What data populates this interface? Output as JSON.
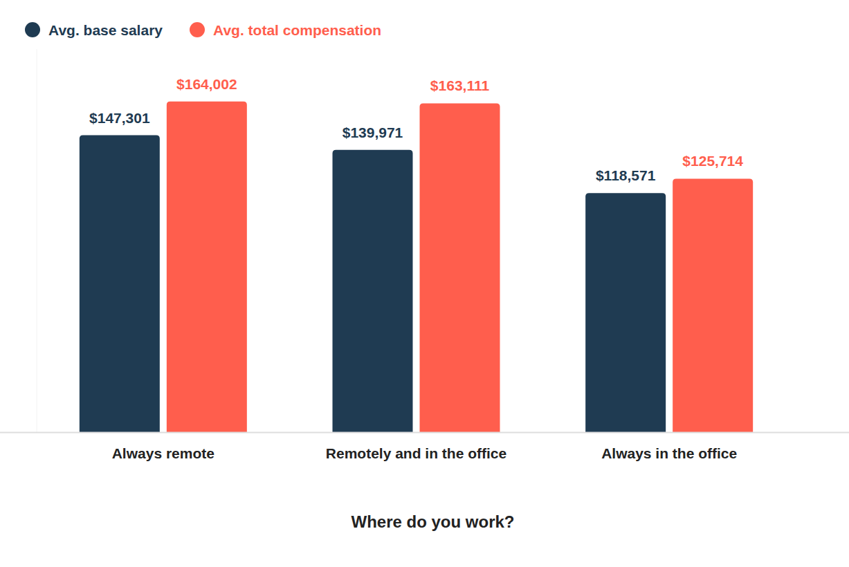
{
  "chart_data": {
    "type": "bar",
    "x_label": "Where do you work?",
    "categories": [
      "Always remote",
      "Remotely and in the office",
      "Always in the office"
    ],
    "series": [
      {
        "name": "Avg. base salary",
        "color": "#1f3b52",
        "values": [
          147301,
          139971,
          118571
        ],
        "value_labels": [
          "$147,301",
          "$139,971",
          "$118,571"
        ]
      },
      {
        "name": "Avg. total compensation",
        "color": "#ff5e4d",
        "values": [
          164002,
          163111,
          125714
        ],
        "value_labels": [
          "$164,002",
          "$163,111",
          "$125,714"
        ]
      }
    ],
    "ylim": [
      0,
      190000
    ],
    "grid": false,
    "legend": "top-left",
    "data_labels": true,
    "tick_labels": "x"
  }
}
